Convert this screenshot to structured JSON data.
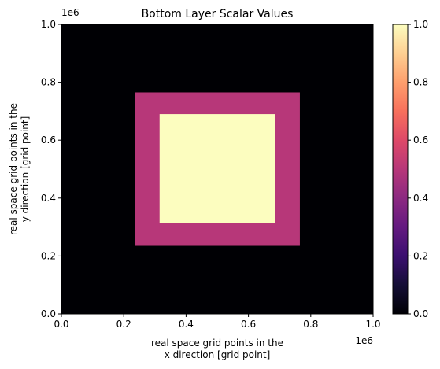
{
  "chart_data": {
    "type": "heatmap",
    "title": "Bottom Layer Scalar Values",
    "xlabel_lines": [
      "real space grid points in the",
      "x direction [grid point]"
    ],
    "ylabel_lines": [
      "real space grid points in the",
      "y direction [grid point]"
    ],
    "x_offset_label": "1e6",
    "y_offset_label": "1e6",
    "xlim": [
      0.0,
      1.0
    ],
    "ylim": [
      0.0,
      1.0
    ],
    "xticks": [
      "0.0",
      "0.2",
      "0.4",
      "0.6",
      "0.8",
      "1.0"
    ],
    "yticks": [
      "0.0",
      "0.2",
      "0.4",
      "0.6",
      "0.8",
      "1.0"
    ],
    "colormap": "magma",
    "colorbar": {
      "range": [
        0.0,
        1.0
      ],
      "ticks": [
        "0.0",
        "0.2",
        "0.4",
        "0.6",
        "0.8",
        "1.0"
      ]
    },
    "regions": [
      {
        "x": [
          0.0,
          1.0
        ],
        "y": [
          0.0,
          1.0
        ],
        "value": 0.0,
        "color": "#000004"
      },
      {
        "x": [
          0.235,
          0.765
        ],
        "y": [
          0.235,
          0.765
        ],
        "value": 0.5,
        "color": "#b73779"
      },
      {
        "x": [
          0.315,
          0.685
        ],
        "y": [
          0.315,
          0.69
        ],
        "value": 1.0,
        "color": "#fcfdbf"
      }
    ]
  }
}
